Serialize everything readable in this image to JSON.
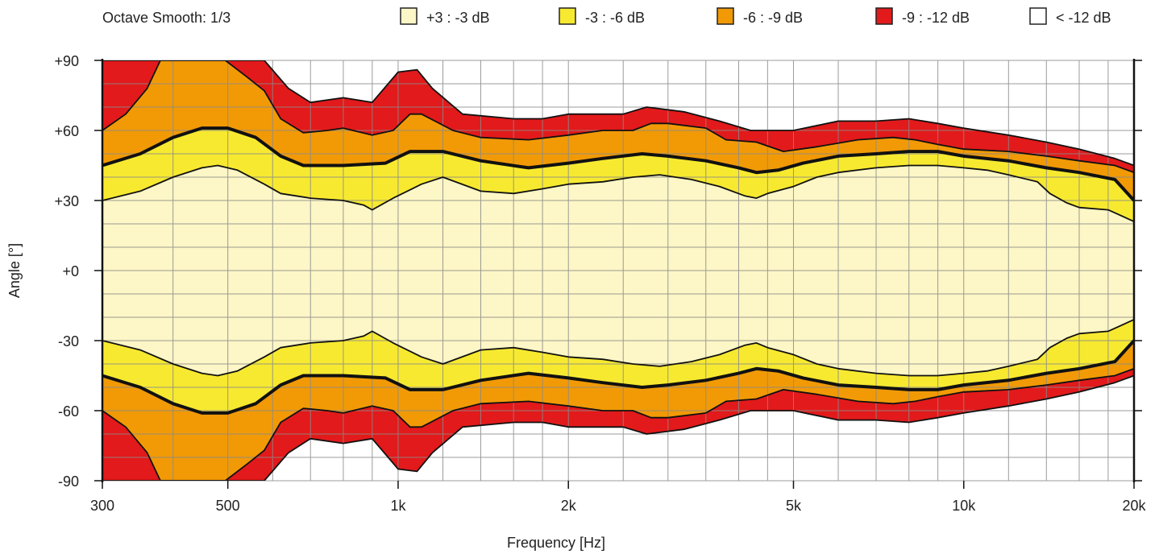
{
  "chart_data": {
    "type": "area",
    "title": "",
    "subtitle": "Octave Smooth: 1/3",
    "xlabel": "Frequency [Hz]",
    "ylabel": "Angle [°]",
    "x_scale": "log",
    "xlim": [
      300,
      20000
    ],
    "ylim": [
      -90,
      90
    ],
    "x_ticks": [
      {
        "value": 300,
        "label": "300"
      },
      {
        "value": 500,
        "label": "500"
      },
      {
        "value": 1000,
        "label": "1k"
      },
      {
        "value": 2000,
        "label": "2k"
      },
      {
        "value": 5000,
        "label": "5k"
      },
      {
        "value": 10000,
        "label": "10k"
      },
      {
        "value": 20000,
        "label": "20k"
      }
    ],
    "y_ticks": [
      {
        "value": 90,
        "label": "+90"
      },
      {
        "value": 60,
        "label": "+60"
      },
      {
        "value": 30,
        "label": "+30"
      },
      {
        "value": 0,
        "label": "+0"
      },
      {
        "value": -30,
        "label": "-30"
      },
      {
        "value": -60,
        "label": "-60"
      },
      {
        "value": -90,
        "label": "-90"
      }
    ],
    "grid": true,
    "legend_position": "top",
    "legend": [
      {
        "label": "+3 : -3 dB",
        "color": "#fdf6c6"
      },
      {
        "label": "-3 : -6 dB",
        "color": "#f7e930"
      },
      {
        "label": "-6 : -9 dB",
        "color": "#f19a06"
      },
      {
        "label": "-9 : -12 dB",
        "color": "#e21a1b"
      },
      {
        "label": "< -12 dB",
        "color": "#ffffff"
      }
    ],
    "symmetric_about_zero": true,
    "contours": [
      {
        "name": "-3 dB",
        "points": [
          [
            300,
            30
          ],
          [
            350,
            34
          ],
          [
            400,
            40
          ],
          [
            450,
            44
          ],
          [
            480,
            45
          ],
          [
            520,
            43
          ],
          [
            580,
            37
          ],
          [
            620,
            33
          ],
          [
            700,
            31
          ],
          [
            800,
            30
          ],
          [
            870,
            28
          ],
          [
            900,
            26
          ],
          [
            980,
            31
          ],
          [
            1100,
            37
          ],
          [
            1200,
            40
          ],
          [
            1400,
            34
          ],
          [
            1600,
            33
          ],
          [
            1800,
            35
          ],
          [
            2000,
            37
          ],
          [
            2300,
            38
          ],
          [
            2600,
            40
          ],
          [
            2900,
            41
          ],
          [
            3300,
            39
          ],
          [
            3700,
            36
          ],
          [
            4100,
            32
          ],
          [
            4300,
            31
          ],
          [
            4500,
            33
          ],
          [
            5000,
            36
          ],
          [
            5500,
            40
          ],
          [
            6000,
            42
          ],
          [
            7000,
            44
          ],
          [
            8000,
            45
          ],
          [
            9000,
            45
          ],
          [
            10000,
            44
          ],
          [
            11000,
            43
          ],
          [
            12000,
            41
          ],
          [
            13500,
            38
          ],
          [
            14200,
            33
          ],
          [
            15200,
            29
          ],
          [
            16000,
            27
          ],
          [
            18000,
            26
          ],
          [
            20000,
            21
          ]
        ]
      },
      {
        "name": "-6 dB",
        "points": [
          [
            300,
            45
          ],
          [
            350,
            50
          ],
          [
            400,
            57
          ],
          [
            450,
            61
          ],
          [
            500,
            61
          ],
          [
            560,
            57
          ],
          [
            620,
            49
          ],
          [
            680,
            45
          ],
          [
            800,
            45
          ],
          [
            950,
            46
          ],
          [
            1050,
            51
          ],
          [
            1200,
            51
          ],
          [
            1400,
            47
          ],
          [
            1700,
            44
          ],
          [
            2000,
            46
          ],
          [
            2300,
            48
          ],
          [
            2700,
            50
          ],
          [
            3000,
            49
          ],
          [
            3500,
            47
          ],
          [
            4000,
            44
          ],
          [
            4300,
            42
          ],
          [
            4700,
            43
          ],
          [
            5200,
            46
          ],
          [
            6000,
            49
          ],
          [
            7000,
            50
          ],
          [
            8000,
            51
          ],
          [
            9000,
            51
          ],
          [
            10000,
            49
          ],
          [
            12000,
            47
          ],
          [
            14000,
            44
          ],
          [
            16000,
            42
          ],
          [
            18500,
            39
          ],
          [
            20000,
            30
          ]
        ]
      },
      {
        "name": "-9 dB",
        "points": [
          [
            300,
            60
          ],
          [
            330,
            67
          ],
          [
            360,
            78
          ],
          [
            380,
            90
          ],
          [
            495,
            90
          ],
          [
            540,
            83
          ],
          [
            580,
            77
          ],
          [
            620,
            65
          ],
          [
            680,
            59
          ],
          [
            750,
            60
          ],
          [
            800,
            61
          ],
          [
            900,
            58
          ],
          [
            980,
            60
          ],
          [
            1050,
            67
          ],
          [
            1100,
            67
          ],
          [
            1250,
            60
          ],
          [
            1400,
            57
          ],
          [
            1700,
            56
          ],
          [
            2000,
            58
          ],
          [
            2300,
            60
          ],
          [
            2600,
            60
          ],
          [
            2800,
            63
          ],
          [
            3000,
            63
          ],
          [
            3500,
            61
          ],
          [
            3800,
            56
          ],
          [
            4300,
            55
          ],
          [
            4800,
            51
          ],
          [
            5500,
            53
          ],
          [
            6500,
            56
          ],
          [
            7500,
            57
          ],
          [
            8200,
            56
          ],
          [
            9000,
            54
          ],
          [
            10000,
            52
          ],
          [
            12000,
            51
          ],
          [
            14000,
            49
          ],
          [
            16000,
            47
          ],
          [
            18500,
            45
          ],
          [
            20000,
            42
          ]
        ]
      },
      {
        "name": "-12 dB",
        "points": [
          [
            300,
            90
          ],
          [
            480,
            90
          ],
          [
            530,
            90
          ],
          [
            580,
            90
          ],
          [
            640,
            78
          ],
          [
            700,
            72
          ],
          [
            800,
            74
          ],
          [
            900,
            72
          ],
          [
            1000,
            85
          ],
          [
            1080,
            86
          ],
          [
            1150,
            78
          ],
          [
            1300,
            67
          ],
          [
            1600,
            65
          ],
          [
            1800,
            65
          ],
          [
            2000,
            67
          ],
          [
            2300,
            67
          ],
          [
            2500,
            67
          ],
          [
            2750,
            70
          ],
          [
            3200,
            68
          ],
          [
            3700,
            64
          ],
          [
            4200,
            60
          ],
          [
            5000,
            60
          ],
          [
            6000,
            64
          ],
          [
            7000,
            64
          ],
          [
            8000,
            65
          ],
          [
            9000,
            63
          ],
          [
            10000,
            61
          ],
          [
            12000,
            58
          ],
          [
            14000,
            55
          ],
          [
            16000,
            52
          ],
          [
            18500,
            48
          ],
          [
            20000,
            45
          ]
        ]
      }
    ]
  }
}
